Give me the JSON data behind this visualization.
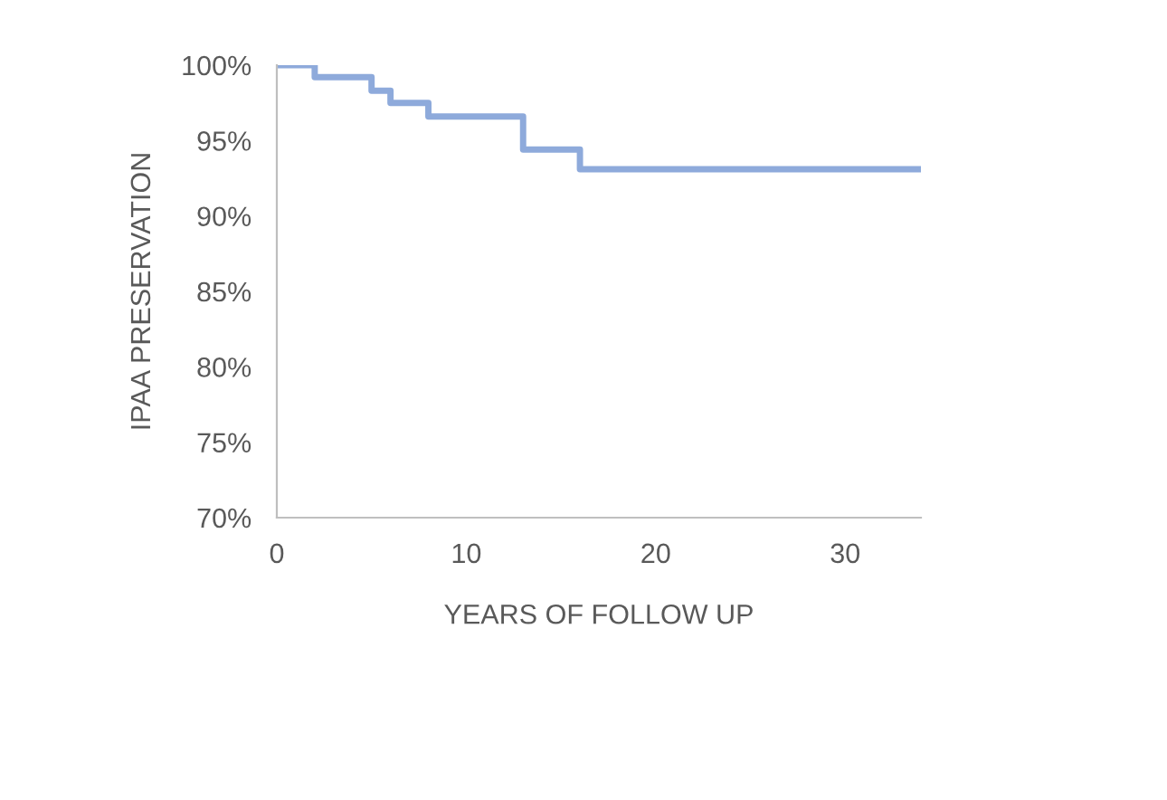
{
  "chart_data": {
    "type": "step",
    "xlabel": "YEARS OF FOLLOW UP",
    "ylabel": "IPAA PRESERVATION",
    "x": [
      0,
      2,
      5,
      6,
      8,
      13,
      16,
      34
    ],
    "series": [
      {
        "color": "#8eaadb",
        "values": [
          100,
          99.2,
          98.3,
          97.5,
          96.6,
          94.4,
          93.1,
          93.1
        ]
      }
    ],
    "xlim": [
      0,
      34
    ],
    "xticks": [
      0,
      10,
      20,
      30
    ],
    "ylim": [
      70,
      100
    ],
    "yticks": [
      {
        "value": 70,
        "label": "70%"
      },
      {
        "value": 75,
        "label": "75%"
      },
      {
        "value": 80,
        "label": "80%"
      },
      {
        "value": 85,
        "label": "85%"
      },
      {
        "value": 90,
        "label": "90%"
      },
      {
        "value": 95,
        "label": "95%"
      },
      {
        "value": 100,
        "label": "100%"
      }
    ],
    "grid": false,
    "legend": false
  }
}
